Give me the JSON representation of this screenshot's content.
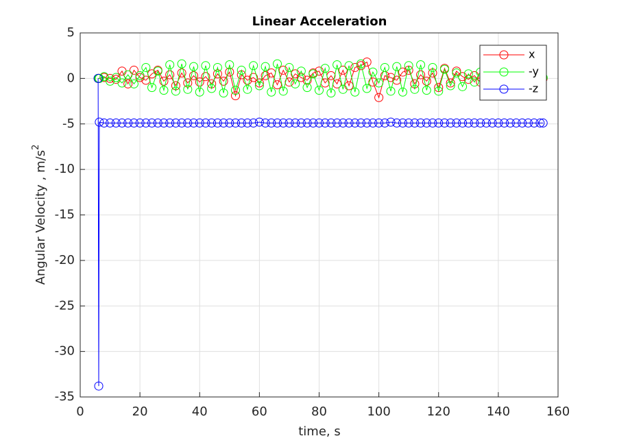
{
  "chart_data": {
    "type": "line",
    "title": "Linear Acceleration",
    "xlabel": "time, s",
    "ylabel": "Angular Velocity , m/s",
    "ylabel_sup": "2",
    "x": [
      6,
      6.2,
      6.4,
      8,
      10,
      12,
      14,
      16,
      18,
      20,
      22,
      24,
      26,
      28,
      30,
      32,
      34,
      36,
      38,
      40,
      42,
      44,
      46,
      48,
      50,
      52,
      54,
      56,
      58,
      60,
      62,
      64,
      66,
      68,
      70,
      72,
      74,
      76,
      78,
      80,
      82,
      84,
      86,
      88,
      90,
      92,
      94,
      96,
      98,
      100,
      102,
      104,
      106,
      108,
      110,
      112,
      114,
      116,
      118,
      120,
      122,
      124,
      126,
      128,
      130,
      132,
      134,
      136,
      138,
      140,
      142,
      144,
      146,
      148,
      150,
      152,
      154,
      155
    ],
    "series": [
      {
        "name": "x",
        "color": "#ff0000",
        "values": [
          0,
          0,
          0,
          0.1,
          0,
          -0.1,
          0.8,
          -0.6,
          0.9,
          0.1,
          -0.2,
          0.5,
          0.9,
          -0.3,
          0.4,
          -0.8,
          0.6,
          -0.5,
          0.3,
          -0.4,
          0.2,
          -0.6,
          0.5,
          -0.3,
          0.7,
          -1.9,
          0.4,
          -0.2,
          0.1,
          -0.5,
          0.3,
          0.6,
          -0.7,
          0.9,
          -0.4,
          0.5,
          0.1,
          -0.2,
          0.6,
          0.8,
          -0.5,
          0.3,
          -0.6,
          0.9,
          -0.8,
          1.2,
          1.4,
          1.8,
          -0.4,
          -2.1,
          0.3,
          0.1,
          -0.2,
          0.7,
          0.9,
          -0.6,
          0.4,
          -0.3,
          0.6,
          -1.0,
          1.1,
          -0.5,
          0.8,
          0.2,
          -0.1,
          0.3,
          -0.4,
          0.1,
          0.2,
          -0.3,
          0.1,
          0,
          0.2,
          -0.1,
          0,
          0.1,
          0,
          0
        ]
      },
      {
        "name": "-y",
        "color": "#00ff00",
        "values": [
          0,
          0,
          0,
          0.2,
          -0.3,
          0.1,
          -0.5,
          0.4,
          -0.6,
          0.3,
          1.2,
          -1.0,
          0.8,
          -1.3,
          1.5,
          -1.4,
          1.6,
          -1.2,
          1.3,
          -1.5,
          1.4,
          -1.1,
          1.2,
          -1.6,
          1.5,
          -1.3,
          0.9,
          -1.2,
          1.4,
          -0.8,
          1.3,
          -1.5,
          1.6,
          -1.4,
          1.2,
          -0.6,
          0.8,
          -1.0,
          0.5,
          -1.3,
          1.1,
          -1.6,
          1.5,
          -1.2,
          1.4,
          -1.5,
          1.6,
          -1.1,
          0.7,
          -0.5,
          1.2,
          -1.4,
          1.3,
          -1.5,
          1.4,
          -1.2,
          1.5,
          -1.3,
          1.2,
          -1.4,
          1.0,
          -0.8,
          0.6,
          -0.9,
          0.5,
          -0.4,
          0.7,
          -1.2,
          0.3,
          -0.5,
          0.4,
          -0.6,
          0.3,
          -1.1,
          0.2,
          -0.3,
          0.1,
          0.1
        ]
      },
      {
        "name": "-z",
        "color": "#0000ff",
        "values": [
          0,
          -33.8,
          -4.8,
          -4.9,
          -4.9,
          -4.9,
          -4.9,
          -4.9,
          -4.9,
          -4.9,
          -4.9,
          -4.9,
          -4.9,
          -4.9,
          -4.9,
          -4.9,
          -4.9,
          -4.9,
          -4.9,
          -4.9,
          -4.9,
          -4.9,
          -4.9,
          -4.9,
          -4.9,
          -4.9,
          -4.9,
          -4.9,
          -4.9,
          -4.8,
          -4.9,
          -4.9,
          -4.9,
          -4.9,
          -4.9,
          -4.9,
          -4.9,
          -4.9,
          -4.9,
          -4.9,
          -4.9,
          -4.9,
          -4.9,
          -4.9,
          -4.9,
          -4.9,
          -4.9,
          -4.9,
          -4.9,
          -4.9,
          -4.9,
          -4.8,
          -4.9,
          -4.9,
          -4.9,
          -4.9,
          -4.9,
          -4.9,
          -4.9,
          -4.9,
          -4.9,
          -4.9,
          -4.9,
          -4.9,
          -4.9,
          -4.9,
          -4.9,
          -4.9,
          -4.9,
          -4.9,
          -4.9,
          -4.9,
          -4.9,
          -4.9,
          -4.9,
          -4.9,
          -4.9,
          -4.9
        ]
      }
    ],
    "xlim": [
      0,
      160
    ],
    "xticks": [
      0,
      20,
      40,
      60,
      80,
      100,
      120,
      140,
      160
    ],
    "ylim": [
      -35,
      5
    ],
    "yticks": [
      -35,
      -30,
      -25,
      -20,
      -15,
      -10,
      -5,
      0,
      5
    ],
    "grid": true,
    "legend": "northeast",
    "marker": "circle"
  }
}
